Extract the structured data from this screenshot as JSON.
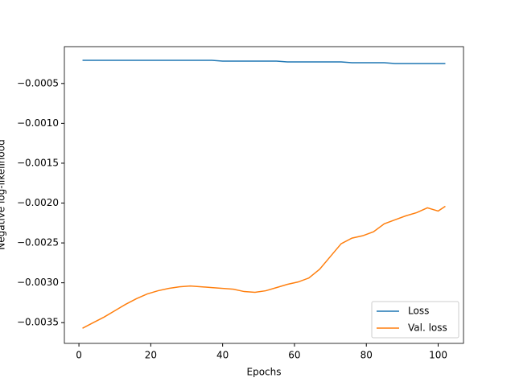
{
  "chart_data": {
    "type": "line",
    "xlabel": "Epochs",
    "ylabel": "Negative log-likelihood",
    "x": [
      1,
      4,
      7,
      10,
      13,
      16,
      19,
      22,
      25,
      28,
      31,
      34,
      37,
      40,
      43,
      46,
      49,
      52,
      55,
      58,
      61,
      64,
      67,
      70,
      73,
      76,
      79,
      82,
      85,
      88,
      91,
      94,
      97,
      100,
      102
    ],
    "series": [
      {
        "name": "Loss",
        "color": "#1f77b4",
        "values": [
          -0.00021,
          -0.00021,
          -0.00021,
          -0.00021,
          -0.00021,
          -0.00021,
          -0.00021,
          -0.00021,
          -0.00021,
          -0.00021,
          -0.00021,
          -0.00021,
          -0.00021,
          -0.00022,
          -0.00022,
          -0.00022,
          -0.00022,
          -0.00022,
          -0.00022,
          -0.00023,
          -0.00023,
          -0.00023,
          -0.00023,
          -0.00023,
          -0.00023,
          -0.00024,
          -0.00024,
          -0.00024,
          -0.00024,
          -0.00025,
          -0.00025,
          -0.00025,
          -0.00025,
          -0.00025,
          -0.00025
        ]
      },
      {
        "name": "Val. loss",
        "color": "#ff7f0e",
        "values": [
          -0.00357,
          -0.0035,
          -0.00343,
          -0.00335,
          -0.00327,
          -0.0032,
          -0.00314,
          -0.0031,
          -0.00307,
          -0.00305,
          -0.00304,
          -0.00305,
          -0.00306,
          -0.00307,
          -0.00308,
          -0.00311,
          -0.00312,
          -0.0031,
          -0.00306,
          -0.00302,
          -0.00299,
          -0.00294,
          -0.00283,
          -0.00267,
          -0.00251,
          -0.00244,
          -0.00241,
          -0.00236,
          -0.00226,
          -0.00221,
          -0.00216,
          -0.00212,
          -0.00206,
          -0.0021,
          -0.00204
        ]
      }
    ],
    "xlim": [
      -4.05,
      107.05
    ],
    "ylim": [
      -0.00376,
      -3.8e-05
    ],
    "xticks": [
      0,
      20,
      40,
      60,
      80,
      100
    ],
    "yticks": [
      {
        "value": -0.0005,
        "label": "−0.0005"
      },
      {
        "value": -0.001,
        "label": "−0.0010"
      },
      {
        "value": -0.0015,
        "label": "−0.0015"
      },
      {
        "value": -0.002,
        "label": "−0.0020"
      },
      {
        "value": -0.0025,
        "label": "−0.0025"
      },
      {
        "value": -0.003,
        "label": "−0.0030"
      },
      {
        "value": -0.0035,
        "label": "−0.0035"
      }
    ],
    "legend": "lower right"
  }
}
